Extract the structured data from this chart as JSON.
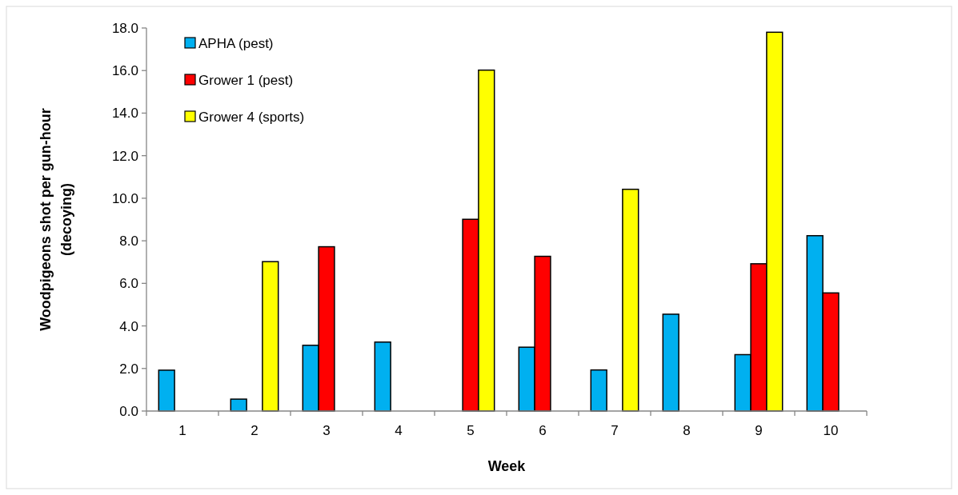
{
  "chart_data": {
    "type": "bar",
    "xlabel": "Week",
    "ylabel": "Woodpigeons shot per gun-hour (decoying)",
    "categories": [
      "1",
      "2",
      "3",
      "4",
      "5",
      "6",
      "7",
      "8",
      "9",
      "10"
    ],
    "series": [
      {
        "name": "APHA (pest)",
        "color": "#00b0f0",
        "values": [
          1.92,
          0.56,
          3.09,
          3.24,
          null,
          3.0,
          1.93,
          4.55,
          2.65,
          8.24
        ]
      },
      {
        "name": "Grower 1 (pest)",
        "color": "#ff0000",
        "values": [
          null,
          null,
          7.72,
          null,
          9.01,
          7.27,
          null,
          null,
          6.92,
          5.55
        ]
      },
      {
        "name": "Grower 4 (sports)",
        "color": "#ffff00",
        "values": [
          null,
          7.02,
          null,
          null,
          16.02,
          null,
          10.42,
          null,
          17.8,
          null
        ]
      }
    ],
    "ylim": [
      0,
      18
    ],
    "yticks": [
      {
        "value": 0,
        "label": "0.0"
      },
      {
        "value": 2,
        "label": "2.0"
      },
      {
        "value": 4,
        "label": "4.0"
      },
      {
        "value": 6,
        "label": "6.0"
      },
      {
        "value": 8,
        "label": "8.0"
      },
      {
        "value": 10,
        "label": "10.0"
      },
      {
        "value": 12,
        "label": "12.0"
      },
      {
        "value": 14,
        "label": "14.0"
      },
      {
        "value": 16,
        "label": "16.0"
      },
      {
        "value": 18,
        "label": "18.0"
      }
    ],
    "legend": "top left",
    "grid": false
  }
}
